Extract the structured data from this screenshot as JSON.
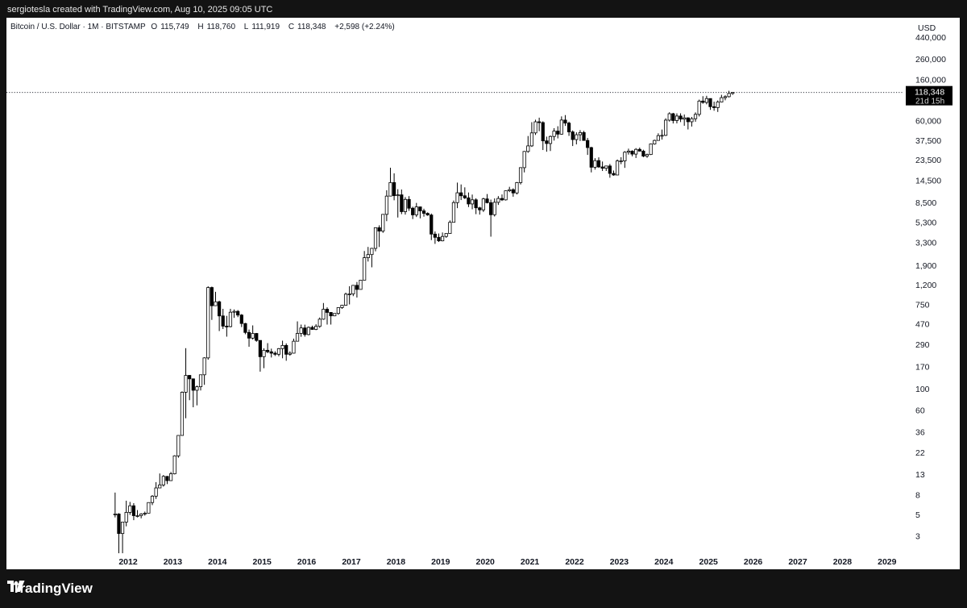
{
  "caption": "sergiotesla created with TradingView.com, Aug 10, 2025 09:05 UTC",
  "legend": {
    "symbol": "Bitcoin / U.S. Dollar · 1M · BITSTAMP",
    "open_label": "O",
    "open": "115,749",
    "high_label": "H",
    "high": "118,760",
    "low_label": "L",
    "low": "111,919",
    "close_label": "C",
    "close": "118,348",
    "change": "+2,598 (+2.24%)"
  },
  "price_axis": {
    "currency": "USD",
    "last_price": "118,348",
    "countdown": "21d 15h"
  },
  "footer": {
    "logo_text": "TradingView"
  },
  "colors": {
    "background": "#131313",
    "panel": "#ffffff",
    "candle_up": "#ffffff",
    "candle_down": "#000000",
    "outline": "#000000",
    "axis_text": "#131722"
  },
  "chart_data": {
    "type": "candlestick",
    "scale": "log",
    "interval": "1M",
    "ylim": [
      2,
      440000
    ],
    "yticks": [
      440000,
      260000,
      160000,
      60000,
      37500,
      23500,
      14500,
      8500,
      5300,
      3300,
      1900,
      1200,
      750,
      470,
      290,
      170,
      100,
      60,
      36,
      22,
      13,
      8,
      5,
      3
    ],
    "ytick_labels": [
      "440,000",
      "260,000",
      "160,000",
      "60,000",
      "37,500",
      "23,500",
      "14,500",
      "8,500",
      "5,300",
      "3,300",
      "1,900",
      "1,200",
      "750",
      "470",
      "290",
      "170",
      "100",
      "60",
      "36",
      "22",
      "13",
      "8",
      "5",
      "3"
    ],
    "xticks": [
      "2012",
      "2013",
      "2014",
      "2015",
      "2016",
      "2017",
      "2018",
      "2019",
      "2020",
      "2021",
      "2022",
      "2023",
      "2024",
      "2025",
      "2026",
      "2027",
      "2028",
      "2029"
    ],
    "first_month": "2011-09",
    "last_price_line": 118348,
    "ohlc": [
      [
        5.0,
        8.5,
        4.7,
        5.1
      ],
      [
        5.1,
        5.2,
        2.0,
        3.2
      ],
      [
        3.2,
        3.8,
        2.0,
        4.2
      ],
      [
        4.2,
        7.0,
        3.8,
        5.3
      ],
      [
        5.3,
        6.8,
        5.0,
        6.2
      ],
      [
        6.2,
        6.6,
        4.4,
        4.9
      ],
      [
        4.9,
        5.6,
        4.7,
        4.9
      ],
      [
        4.9,
        5.2,
        4.6,
        5.1
      ],
      [
        5.1,
        5.4,
        4.9,
        5.2
      ],
      [
        5.2,
        6.7,
        5.2,
        6.7
      ],
      [
        6.7,
        8.0,
        6.3,
        7.8
      ],
      [
        7.8,
        10.9,
        7.3,
        9.5
      ],
      [
        9.5,
        13.4,
        9.5,
        10.2
      ],
      [
        10.2,
        12.9,
        9.8,
        12.5
      ],
      [
        12.5,
        12.6,
        10.4,
        11.3
      ],
      [
        11.3,
        13.9,
        11.2,
        13.3
      ],
      [
        13.3,
        20.7,
        13.1,
        20.4
      ],
      [
        20.4,
        33.3,
        19.5,
        33.2
      ],
      [
        33.2,
        94.9,
        33.0,
        93.0
      ],
      [
        93.0,
        266.0,
        50.0,
        139.0
      ],
      [
        139.0,
        140.0,
        77.0,
        128.0
      ],
      [
        128.0,
        129.0,
        65.0,
        97.5
      ],
      [
        97.5,
        109.0,
        68.0,
        106.0
      ],
      [
        106.0,
        140.0,
        97.0,
        141.0
      ],
      [
        141.0,
        214.0,
        111.0,
        211.0
      ],
      [
        211.0,
        1163.0,
        202.0,
        1130.0
      ],
      [
        1130.0,
        1155.0,
        522.0,
        732.0
      ],
      [
        732.0,
        1020.0,
        731.0,
        804.0
      ],
      [
        804.0,
        825.0,
        400.0,
        574.0
      ],
      [
        574.0,
        680.0,
        420.0,
        450.0
      ],
      [
        450.0,
        575.0,
        350.0,
        445.0
      ],
      [
        445.0,
        680.0,
        437.0,
        627.0
      ],
      [
        627.0,
        670.0,
        548.0,
        640.0
      ],
      [
        640.0,
        660.0,
        558.0,
        586.0
      ],
      [
        586.0,
        600.0,
        440.0,
        479.0
      ],
      [
        479.0,
        486.0,
        371.0,
        387.0
      ],
      [
        387.0,
        415.0,
        275.0,
        338.0
      ],
      [
        338.0,
        458.0,
        327.0,
        378.0
      ],
      [
        378.0,
        382.0,
        310.0,
        320.0
      ],
      [
        320.0,
        320.0,
        152.0,
        217.0
      ],
      [
        217.0,
        265.0,
        165.0,
        253.0
      ],
      [
        253.0,
        300.0,
        236.0,
        244.0
      ],
      [
        244.0,
        263.0,
        213.0,
        236.0
      ],
      [
        236.0,
        247.0,
        221.0,
        230.0
      ],
      [
        230.0,
        267.0,
        219.0,
        263.0
      ],
      [
        263.0,
        318.0,
        209.0,
        284.0
      ],
      [
        284.0,
        298.0,
        197.0,
        230.0
      ],
      [
        230.0,
        247.0,
        222.0,
        236.0
      ],
      [
        236.0,
        334.0,
        235.0,
        314.0
      ],
      [
        314.0,
        504.0,
        312.0,
        378.0
      ],
      [
        378.0,
        467.0,
        349.0,
        431.0
      ],
      [
        431.0,
        466.0,
        350.0,
        368.0
      ],
      [
        368.0,
        446.0,
        362.0,
        437.0
      ],
      [
        437.0,
        455.0,
        412.0,
        416.0
      ],
      [
        416.0,
        471.0,
        409.0,
        448.0
      ],
      [
        448.0,
        553.0,
        432.0,
        531.0
      ],
      [
        531.0,
        781.0,
        523.0,
        673.0
      ],
      [
        673.0,
        705.0,
        467.0,
        624.0
      ],
      [
        624.0,
        626.0,
        467.0,
        575.0
      ],
      [
        575.0,
        610.0,
        570.0,
        609.0
      ],
      [
        609.0,
        640.0,
        590.0,
        700.0
      ],
      [
        700.0,
        745.0,
        680.0,
        740.0
      ],
      [
        740.0,
        1000.0,
        732.0,
        964.0
      ],
      [
        964.0,
        1165.0,
        755.0,
        970.0
      ],
      [
        970.0,
        1200.0,
        920.0,
        1190.0
      ],
      [
        1190.0,
        1290.0,
        890.0,
        1080.0
      ],
      [
        1080.0,
        1350.0,
        1080.0,
        1347.0
      ],
      [
        1347.0,
        2700.0,
        1347.0,
        2300.0
      ],
      [
        2300.0,
        2975.0,
        2100.0,
        2480.0
      ],
      [
        2480.0,
        2910.0,
        1830.0,
        2875.0
      ],
      [
        2875.0,
        4480.0,
        2680.0,
        4703.0
      ],
      [
        4703.0,
        4980.0,
        2970.0,
        4338.0
      ],
      [
        4338.0,
        6470.0,
        4160.0,
        6468.0
      ],
      [
        6468.0,
        11500.0,
        5500.0,
        10000.0
      ],
      [
        10000.0,
        19666.0,
        10000.0,
        13800.0
      ],
      [
        13800.0,
        17200.0,
        9050.0,
        10100.0
      ],
      [
        10100.0,
        11790.0,
        6000.0,
        10300.0
      ],
      [
        10300.0,
        11700.0,
        6500.0,
        6900.0
      ],
      [
        6900.0,
        9760.0,
        6430.0,
        9240.0
      ],
      [
        9240.0,
        9990.0,
        7030.0,
        7490.0
      ],
      [
        7490.0,
        7760.0,
        5780.0,
        6390.0
      ],
      [
        6390.0,
        8500.0,
        6070.0,
        7730.0
      ],
      [
        7730.0,
        7770.0,
        5880.0,
        7030.0
      ],
      [
        7030.0,
        7400.0,
        6120.0,
        6630.0
      ],
      [
        6630.0,
        6780.0,
        6250.0,
        6370.0
      ],
      [
        6370.0,
        6600.0,
        3500.0,
        4040.0
      ],
      [
        4040.0,
        4300.0,
        3200.0,
        3740.0
      ],
      [
        3740.0,
        4100.0,
        3350.0,
        3440.0
      ],
      [
        3440.0,
        4200.0,
        3400.0,
        3820.0
      ],
      [
        3820.0,
        4100.0,
        3700.0,
        4100.0
      ],
      [
        4100.0,
        5600.0,
        4070.0,
        5350.0
      ],
      [
        5350.0,
        9000.0,
        5320.0,
        8560.0
      ],
      [
        8560.0,
        13800.0,
        7500.0,
        10820.0
      ],
      [
        10820.0,
        13200.0,
        9100.0,
        10080.0
      ],
      [
        10080.0,
        12320.0,
        9320.0,
        9590.0
      ],
      [
        9590.0,
        10900.0,
        7700.0,
        8290.0
      ],
      [
        8290.0,
        10370.0,
        7300.0,
        9150.0
      ],
      [
        9150.0,
        9500.0,
        6500.0,
        7560.0
      ],
      [
        7560.0,
        7750.0,
        6430.0,
        7200.0
      ],
      [
        7200.0,
        9600.0,
        6850.0,
        9350.0
      ],
      [
        9350.0,
        10500.0,
        8400.0,
        8540.0
      ],
      [
        8540.0,
        9200.0,
        3800.0,
        6410.0
      ],
      [
        6410.0,
        9460.0,
        6150.0,
        8620.0
      ],
      [
        8620.0,
        10000.0,
        8100.0,
        9450.0
      ],
      [
        9450.0,
        10400.0,
        8900.0,
        9140.0
      ],
      [
        9140.0,
        11400.0,
        9000.0,
        11350.0
      ],
      [
        11350.0,
        12480.0,
        11000.0,
        11650.0
      ],
      [
        11650.0,
        12050.0,
        9850.0,
        10780.0
      ],
      [
        10780.0,
        14000.0,
        10400.0,
        13800.0
      ],
      [
        13800.0,
        19900.0,
        13200.0,
        19700.0
      ],
      [
        19700.0,
        29300.0,
        17600.0,
        28990.0
      ],
      [
        28990.0,
        41900.0,
        28100.0,
        33110.0
      ],
      [
        33110.0,
        58300.0,
        32300.0,
        45140.0
      ],
      [
        45140.0,
        61800.0,
        43000.0,
        58800.0
      ],
      [
        58800.0,
        64900.0,
        47000.0,
        57750.0
      ],
      [
        57750.0,
        59500.0,
        30000.0,
        37330.0
      ],
      [
        37330.0,
        41300.0,
        28800.0,
        35040.0
      ],
      [
        35040.0,
        42400.0,
        29300.0,
        41460.0
      ],
      [
        41460.0,
        50500.0,
        37600.0,
        47100.0
      ],
      [
        47100.0,
        52900.0,
        39600.0,
        43800.0
      ],
      [
        43800.0,
        66900.0,
        43300.0,
        61300.0
      ],
      [
        61300.0,
        69000.0,
        53300.0,
        57000.0
      ],
      [
        57000.0,
        59000.0,
        42000.0,
        46200.0
      ],
      [
        46200.0,
        47900.0,
        33000.0,
        38500.0
      ],
      [
        38500.0,
        45800.0,
        34300.0,
        43200.0
      ],
      [
        43200.0,
        48200.0,
        37200.0,
        45500.0
      ],
      [
        45500.0,
        47400.0,
        37700.0,
        37700.0
      ],
      [
        37700.0,
        40000.0,
        26700.0,
        31800.0
      ],
      [
        31800.0,
        32400.0,
        17600.0,
        19900.0
      ],
      [
        19900.0,
        24700.0,
        18800.0,
        23300.0
      ],
      [
        23300.0,
        25200.0,
        19600.0,
        20050.0
      ],
      [
        20050.0,
        22800.0,
        18200.0,
        19420.0
      ],
      [
        19420.0,
        20500.0,
        18200.0,
        20500.0
      ],
      [
        20500.0,
        21500.0,
        15500.0,
        17170.0
      ],
      [
        17170.0,
        18400.0,
        16250.0,
        16540.0
      ],
      [
        16540.0,
        23950.0,
        16500.0,
        23140.0
      ],
      [
        23140.0,
        25250.0,
        21400.0,
        23150.0
      ],
      [
        23150.0,
        29200.0,
        19600.0,
        28470.0
      ],
      [
        28470.0,
        31000.0,
        26900.0,
        29250.0
      ],
      [
        29250.0,
        29800.0,
        25800.0,
        27220.0
      ],
      [
        27220.0,
        31400.0,
        24800.0,
        30480.0
      ],
      [
        30480.0,
        31800.0,
        28900.0,
        29230.0
      ],
      [
        29230.0,
        30200.0,
        25300.0,
        25940.0
      ],
      [
        25940.0,
        27500.0,
        24900.0,
        26960.0
      ],
      [
        26960.0,
        35000.0,
        26600.0,
        34670.0
      ],
      [
        34670.0,
        38400.0,
        34100.0,
        37720.0
      ],
      [
        37720.0,
        44700.0,
        37600.0,
        42280.0
      ],
      [
        42280.0,
        48900.0,
        38500.0,
        42580.0
      ],
      [
        42580.0,
        64000.0,
        41900.0,
        61200.0
      ],
      [
        61200.0,
        73800.0,
        59100.0,
        71300.0
      ],
      [
        71300.0,
        72800.0,
        56500.0,
        60600.0
      ],
      [
        60600.0,
        71900.0,
        56600.0,
        67500.0
      ],
      [
        67500.0,
        72000.0,
        58400.0,
        62700.0
      ],
      [
        62700.0,
        70000.0,
        53500.0,
        64600.0
      ],
      [
        64600.0,
        65500.0,
        49000.0,
        58900.0
      ],
      [
        58900.0,
        66000.0,
        52500.0,
        63300.0
      ],
      [
        63300.0,
        73600.0,
        58900.0,
        70200.0
      ],
      [
        70200.0,
        99800.0,
        66800.0,
        96400.0
      ],
      [
        96400.0,
        108300.0,
        90500.0,
        93400.0
      ],
      [
        93400.0,
        109300.0,
        89200.0,
        102400.0
      ],
      [
        102400.0,
        102500.0,
        78200.0,
        84300.0
      ],
      [
        84300.0,
        95100.0,
        76600.0,
        82500.0
      ],
      [
        82500.0,
        97900.0,
        74400.0,
        94200.0
      ],
      [
        94200.0,
        111900.0,
        93300.0,
        104600.0
      ],
      [
        104600.0,
        110600.0,
        98200.0,
        107100.0
      ],
      [
        107100.0,
        123200.0,
        105100.0,
        115749.0
      ],
      [
        115749.0,
        118760.0,
        111919.0,
        118348.0
      ]
    ]
  }
}
